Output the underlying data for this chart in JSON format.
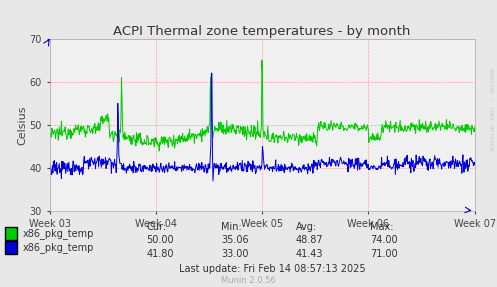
{
  "title": "ACPI Thermal zone temperatures - by month",
  "ylabel": "Celsius",
  "ylim": [
    30,
    70
  ],
  "yticks": [
    30,
    40,
    50,
    60,
    70
  ],
  "week_labels": [
    "Week 03",
    "Week 04",
    "Week 05",
    "Week 06",
    "Week 07"
  ],
  "bg_color": "#e8e8e8",
  "plot_bg_color": "#f0f0f0",
  "grid_color": "#ff9999",
  "green_color": "#00cc00",
  "blue_color": "#0000dd",
  "legend_green": "x86_pkg_temp",
  "legend_blue": "x86_pkg_temp",
  "cur_green": "50.00",
  "cur_blue": "41.80",
  "min_green": "35.06",
  "min_blue": "33.00",
  "avg_green": "48.87",
  "avg_blue": "41.43",
  "max_green": "74.00",
  "max_blue": "71.00",
  "last_update": "Last update: Fri Feb 14 08:57:13 2025",
  "munin_version": "Munin 2.0.56",
  "watermark": "RRDTOOL / TOBI OETIKER"
}
